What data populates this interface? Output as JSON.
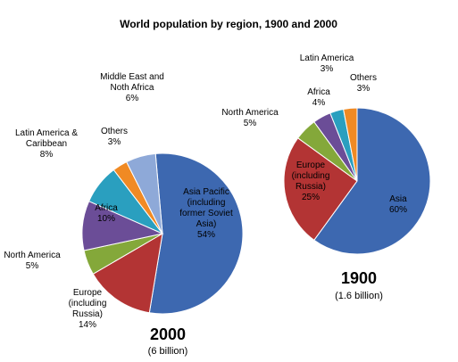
{
  "chart_data": {
    "type": "pie",
    "title": "World population by region, 1900  and 2000",
    "charts": [
      {
        "year": "2000",
        "total": "(6 billion)",
        "slices": [
          {
            "label": [
              "Asia Pacific",
              "(including",
              "former Soviet",
              "Asia)"
            ],
            "value": 54,
            "pct": "54%",
            "color": "#3D68B0"
          },
          {
            "label": [
              "Europe",
              "(including",
              "Russia)"
            ],
            "value": 14,
            "pct": "14%",
            "color": "#B33434"
          },
          {
            "label": [
              "North America"
            ],
            "value": 5,
            "pct": "5%",
            "color": "#84A83A"
          },
          {
            "label": [
              "Africa"
            ],
            "value": 10,
            "pct": "10%",
            "color": "#6B4D97"
          },
          {
            "label": [
              "Latin America &",
              "Caribbean"
            ],
            "value": 8,
            "pct": "8%",
            "color": "#2A9FBF"
          },
          {
            "label": [
              "Others"
            ],
            "value": 3,
            "pct": "3%",
            "color": "#F08A24"
          },
          {
            "label": [
              "Middle East  and",
              "Noth Africa"
            ],
            "value": 6,
            "pct": "6%",
            "color": "#8EA9D8"
          }
        ]
      },
      {
        "year": "1900",
        "total": "(1.6 billion)",
        "slices": [
          {
            "label": [
              "Asia"
            ],
            "value": 60,
            "pct": "60%",
            "color": "#3D68B0"
          },
          {
            "label": [
              "Europe",
              "(including",
              "Russia)"
            ],
            "value": 25,
            "pct": "25%",
            "color": "#B33434"
          },
          {
            "label": [
              "North America"
            ],
            "value": 5,
            "pct": "5%",
            "color": "#84A83A"
          },
          {
            "label": [
              "Africa"
            ],
            "value": 4,
            "pct": "4%",
            "color": "#6B4D97"
          },
          {
            "label": [
              "Latin America"
            ],
            "value": 3,
            "pct": "3%",
            "color": "#2A9FBF"
          },
          {
            "label": [
              "Others"
            ],
            "value": 3,
            "pct": "3%",
            "color": "#F08A24"
          }
        ]
      }
    ]
  }
}
